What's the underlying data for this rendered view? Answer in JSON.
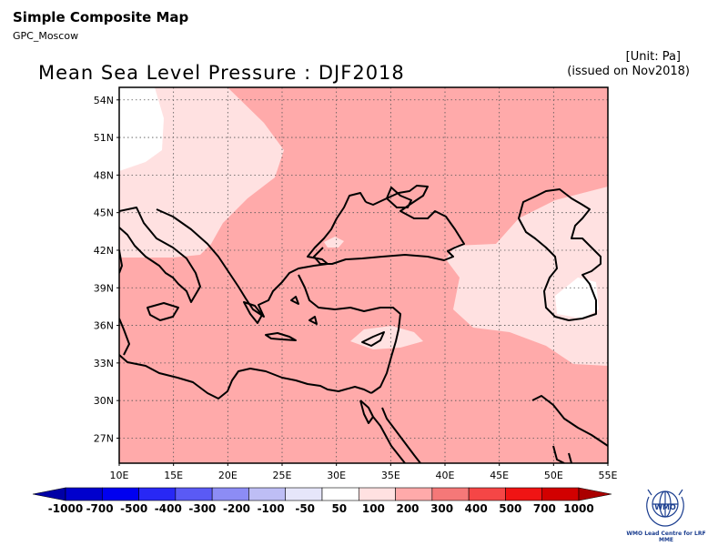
{
  "header": {
    "title": "Simple Composite Map",
    "subtitle": "GPC_Moscow"
  },
  "map": {
    "title": "Mean Sea Level Pressure : DJF2018",
    "unit": "[Unit: Pa]",
    "issued": "(issued on Nov2018)",
    "lon_ticks": [
      "10E",
      "15E",
      "20E",
      "25E",
      "30E",
      "35E",
      "40E",
      "45E",
      "50E",
      "55E"
    ],
    "lat_ticks": [
      "54N",
      "51N",
      "48N",
      "45N",
      "42N",
      "39N",
      "36N",
      "33N",
      "30N",
      "27N"
    ],
    "lon_range": [
      10,
      55
    ],
    "lat_range": [
      25,
      55
    ],
    "grid": true,
    "dominant_class": "100 to 200"
  },
  "colorbar": {
    "labels": [
      "-1000",
      "-700",
      "-500",
      "-400",
      "-300",
      "-200",
      "-100",
      "-50",
      "50",
      "100",
      "200",
      "300",
      "400",
      "500",
      "700",
      "1000"
    ],
    "colors": [
      "#0000a6",
      "#0000cd",
      "#0000f0",
      "#2828f5",
      "#5a5af5",
      "#8c8cf5",
      "#bebef5",
      "#e6e6fa",
      "#ffffff",
      "#ffe1e1",
      "#ffaaaa",
      "#f57878",
      "#f54646",
      "#f01414",
      "#d20000",
      "#aa0000"
    ]
  },
  "logo": {
    "name": "wmo-logo-icon",
    "text": "WMO Lead Centre for LRF MME"
  }
}
